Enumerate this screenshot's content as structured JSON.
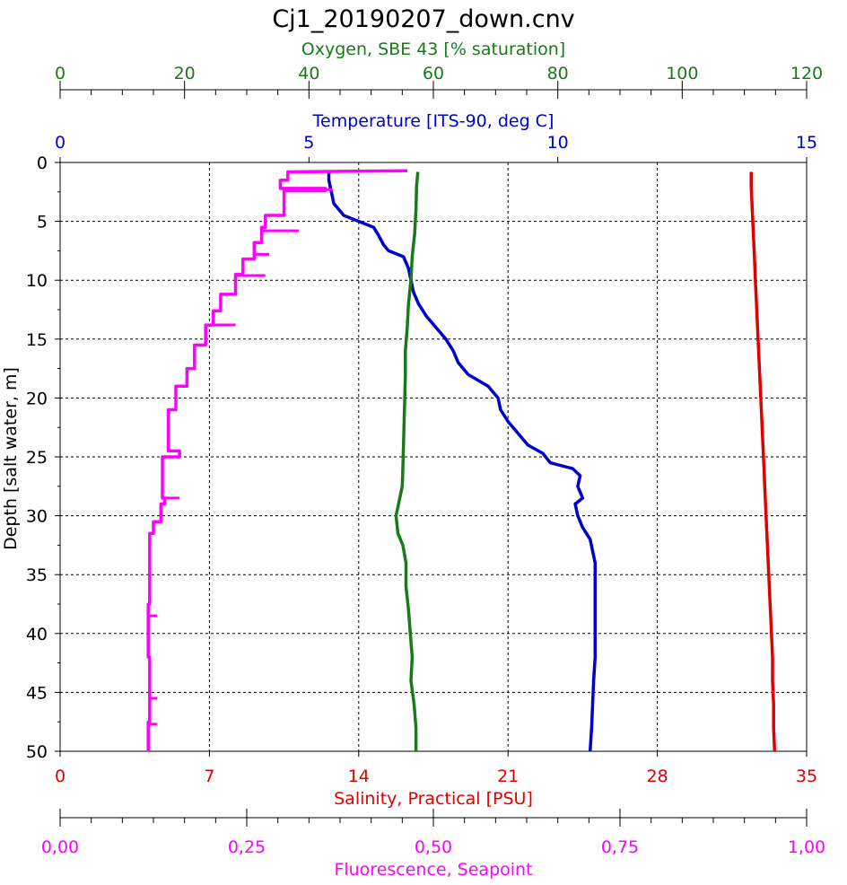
{
  "chart_data": {
    "type": "line",
    "title": "Cj1_20190207_down.cnv",
    "grid": true,
    "y_axis": {
      "label": "Depth [salt water, m]",
      "range": [
        0,
        50
      ],
      "inverted": true,
      "ticks": [
        0,
        5,
        10,
        15,
        20,
        25,
        30,
        35,
        40,
        45,
        50
      ],
      "tick_labels": [
        "0",
        "5",
        "10",
        "15",
        "20",
        "25",
        "30",
        "35",
        "40",
        "45",
        "50"
      ]
    },
    "x_axes": [
      {
        "id": "oxygen",
        "label": "Oxygen, SBE 43 [% saturation]",
        "color": "#1a7a1a",
        "position": "top",
        "range": [
          0,
          120
        ],
        "ticks": [
          0,
          20,
          40,
          60,
          80,
          100,
          120
        ],
        "tick_labels": [
          "0",
          "20",
          "40",
          "60",
          "80",
          "100",
          "120"
        ]
      },
      {
        "id": "temperature",
        "label": "Temperature [ITS-90, deg C]",
        "color": "#0000cc",
        "position": "top-inner",
        "range": [
          0,
          15
        ],
        "ticks": [
          0,
          5,
          10,
          15
        ],
        "tick_labels": [
          "0",
          "5",
          "10",
          "15"
        ]
      },
      {
        "id": "salinity",
        "label": "Salinity, Practical [PSU]",
        "color": "#e00000",
        "position": "bottom-inner",
        "range": [
          0,
          35
        ],
        "ticks": [
          0,
          7,
          14,
          21,
          28,
          35
        ],
        "tick_labels": [
          "0",
          "7",
          "14",
          "21",
          "28",
          "35"
        ]
      },
      {
        "id": "fluorescence",
        "label": "Fluorescence, Seapoint",
        "color": "#ff00ff",
        "position": "bottom",
        "range": [
          0,
          1
        ],
        "ticks": [
          0,
          0.25,
          0.5,
          0.75,
          1
        ],
        "tick_labels": [
          "0,00",
          "0,25",
          "0,50",
          "0,75",
          "1,00"
        ]
      }
    ],
    "series": [
      {
        "axis": "temperature",
        "color": "#0000cc",
        "points": [
          [
            5.4,
            0.8
          ],
          [
            5.4,
            1.5
          ],
          [
            5.45,
            2.5
          ],
          [
            5.5,
            3.5
          ],
          [
            5.7,
            4.5
          ],
          [
            6.0,
            5.0
          ],
          [
            6.3,
            5.5
          ],
          [
            6.4,
            6.2
          ],
          [
            6.5,
            7.0
          ],
          [
            6.6,
            7.5
          ],
          [
            6.9,
            8.0
          ],
          [
            7.0,
            9.0
          ],
          [
            7.05,
            10.0
          ],
          [
            7.1,
            11.0
          ],
          [
            7.2,
            12.0
          ],
          [
            7.35,
            13.0
          ],
          [
            7.55,
            14.0
          ],
          [
            7.75,
            15.0
          ],
          [
            7.9,
            16.0
          ],
          [
            8.0,
            17.0
          ],
          [
            8.2,
            18.0
          ],
          [
            8.6,
            19.0
          ],
          [
            8.8,
            20.0
          ],
          [
            8.85,
            21.0
          ],
          [
            9.0,
            22.0
          ],
          [
            9.2,
            23.0
          ],
          [
            9.4,
            24.0
          ],
          [
            9.7,
            24.7
          ],
          [
            9.85,
            25.5
          ],
          [
            10.3,
            26.0
          ],
          [
            10.45,
            26.6
          ],
          [
            10.4,
            27.5
          ],
          [
            10.5,
            28.5
          ],
          [
            10.35,
            29.0
          ],
          [
            10.4,
            30.0
          ],
          [
            10.5,
            31.0
          ],
          [
            10.65,
            32.0
          ],
          [
            10.75,
            34.0
          ],
          [
            10.75,
            36.0
          ],
          [
            10.75,
            38.0
          ],
          [
            10.75,
            40.0
          ],
          [
            10.75,
            42.0
          ],
          [
            10.72,
            44.0
          ],
          [
            10.7,
            46.0
          ],
          [
            10.68,
            48.0
          ],
          [
            10.65,
            50.0
          ]
        ]
      },
      {
        "axis": "oxygen",
        "color": "#1a7a1a",
        "points": [
          [
            57.5,
            0.8
          ],
          [
            57.3,
            2.0
          ],
          [
            57.2,
            4.0
          ],
          [
            57.0,
            6.0
          ],
          [
            56.6,
            8.0
          ],
          [
            56.4,
            10.0
          ],
          [
            56.0,
            12.0
          ],
          [
            55.8,
            14.0
          ],
          [
            55.5,
            16.0
          ],
          [
            55.5,
            18.0
          ],
          [
            55.4,
            20.0
          ],
          [
            55.3,
            22.0
          ],
          [
            55.2,
            24.0
          ],
          [
            55.1,
            26.0
          ],
          [
            55.0,
            27.5
          ],
          [
            54.4,
            29.0
          ],
          [
            54.0,
            30.0
          ],
          [
            54.3,
            31.5
          ],
          [
            55.1,
            32.5
          ],
          [
            55.6,
            34.0
          ],
          [
            55.6,
            36.0
          ],
          [
            56.0,
            38.0
          ],
          [
            56.3,
            40.0
          ],
          [
            56.6,
            42.0
          ],
          [
            56.4,
            44.0
          ],
          [
            56.9,
            46.0
          ],
          [
            57.2,
            48.0
          ],
          [
            57.2,
            50.0
          ]
        ]
      },
      {
        "axis": "salinity",
        "color": "#e00000",
        "points": [
          [
            32.4,
            0.8
          ],
          [
            32.4,
            2.0
          ],
          [
            32.45,
            4.0
          ],
          [
            32.5,
            6.0
          ],
          [
            32.55,
            8.0
          ],
          [
            32.6,
            10.0
          ],
          [
            32.65,
            12.0
          ],
          [
            32.7,
            14.0
          ],
          [
            32.75,
            16.0
          ],
          [
            32.8,
            18.0
          ],
          [
            32.85,
            20.0
          ],
          [
            32.9,
            22.0
          ],
          [
            32.95,
            24.0
          ],
          [
            33.0,
            26.0
          ],
          [
            33.05,
            28.0
          ],
          [
            33.1,
            30.0
          ],
          [
            33.15,
            32.0
          ],
          [
            33.2,
            34.0
          ],
          [
            33.25,
            36.0
          ],
          [
            33.3,
            38.0
          ],
          [
            33.35,
            40.0
          ],
          [
            33.4,
            42.0
          ],
          [
            33.4,
            44.0
          ],
          [
            33.45,
            46.0
          ],
          [
            33.45,
            48.0
          ],
          [
            33.5,
            50.0
          ]
        ]
      },
      {
        "axis": "fluorescence",
        "color": "#ff00ff",
        "points": [
          [
            0.465,
            0.7
          ],
          [
            0.305,
            0.8
          ],
          [
            0.305,
            1.5
          ],
          [
            0.295,
            1.5
          ],
          [
            0.295,
            2.2
          ],
          [
            0.355,
            2.2
          ],
          [
            0.355,
            2.4
          ],
          [
            0.3,
            2.4
          ],
          [
            0.3,
            4.5
          ],
          [
            0.275,
            4.5
          ],
          [
            0.275,
            5.5
          ],
          [
            0.27,
            5.5
          ],
          [
            0.27,
            6.8
          ],
          [
            0.26,
            6.8
          ],
          [
            0.26,
            8.2
          ],
          [
            0.245,
            8.2
          ],
          [
            0.245,
            9.5
          ],
          [
            0.235,
            9.5
          ],
          [
            0.235,
            11.2
          ],
          [
            0.215,
            11.2
          ],
          [
            0.215,
            12.6
          ],
          [
            0.205,
            12.6
          ],
          [
            0.205,
            13.8
          ],
          [
            0.195,
            13.8
          ],
          [
            0.195,
            15.5
          ],
          [
            0.18,
            15.5
          ],
          [
            0.18,
            17.5
          ],
          [
            0.17,
            17.5
          ],
          [
            0.17,
            19.0
          ],
          [
            0.155,
            19.0
          ],
          [
            0.155,
            21.0
          ],
          [
            0.145,
            21.0
          ],
          [
            0.145,
            24.5
          ],
          [
            0.16,
            24.5
          ],
          [
            0.16,
            25.0
          ],
          [
            0.137,
            25.0
          ],
          [
            0.137,
            28.5
          ],
          [
            0.14,
            28.5
          ],
          [
            0.14,
            29.0
          ],
          [
            0.135,
            29.0
          ],
          [
            0.135,
            30.5
          ],
          [
            0.125,
            30.5
          ],
          [
            0.125,
            31.5
          ],
          [
            0.12,
            31.5
          ],
          [
            0.12,
            37.5
          ],
          [
            0.118,
            37.5
          ],
          [
            0.118,
            42.0
          ],
          [
            0.12,
            42.0
          ],
          [
            0.12,
            46.0
          ],
          [
            0.12,
            47.5
          ],
          [
            0.118,
            47.5
          ],
          [
            0.118,
            50.0
          ]
        ],
        "spikes": [
          [
            0.465,
            0.7
          ],
          [
            0.365,
            2.3
          ],
          [
            0.32,
            5.8
          ],
          [
            0.28,
            7.8
          ],
          [
            0.275,
            9.6
          ],
          [
            0.235,
            13.8
          ],
          [
            0.16,
            28.5
          ],
          [
            0.13,
            38.5
          ],
          [
            0.13,
            45.5
          ],
          [
            0.13,
            47.7
          ]
        ]
      }
    ]
  }
}
